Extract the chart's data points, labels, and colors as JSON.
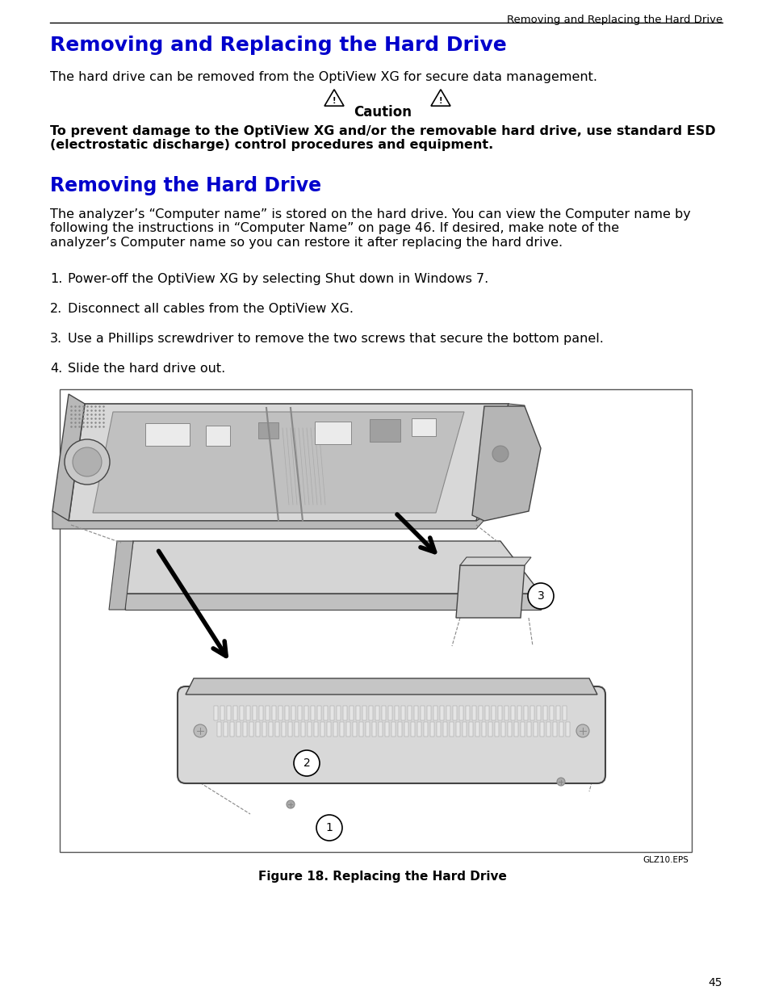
{
  "page_number": "45",
  "header_text": "Removing and Replacing the Hard Drive",
  "title": "Removing and Replacing the Hard Drive",
  "intro_text": "The hard drive can be removed from the OptiView XG for secure data management.",
  "caution_label": "Caution",
  "caution_body": "To prevent damage to the OptiView XG and/or the removable hard drive, use standard ESD\n(electrostatic discharge) control procedures and equipment.",
  "section_title": "Removing the Hard Drive",
  "section_body": "The analyzer’s “Computer name” is stored on the hard drive. You can view the Computer name by\nfollowing the instructions in “Computer Name” on page 46. If desired, make note of the\nanalyzer’s Computer name so you can restore it after replacing the hard drive.",
  "steps": [
    "Power-off the OptiView XG by selecting Shut down in Windows 7.",
    "Disconnect all cables from the OptiView XG. ",
    "Use a Phillips screwdriver to remove the two screws that secure the bottom panel.",
    "Slide the hard drive out."
  ],
  "figure_caption": "Figure 18. Replacing the Hard Drive",
  "figure_label": "GLZ10.EPS",
  "bg_color": "#ffffff",
  "text_color": "#000000",
  "blue_color": "#0000cc",
  "body_font_size": 11.5,
  "title_font_size": 18,
  "section_font_size": 17,
  "caption_font_size": 11,
  "header_font_size": 9.5,
  "page_num_font_size": 10
}
